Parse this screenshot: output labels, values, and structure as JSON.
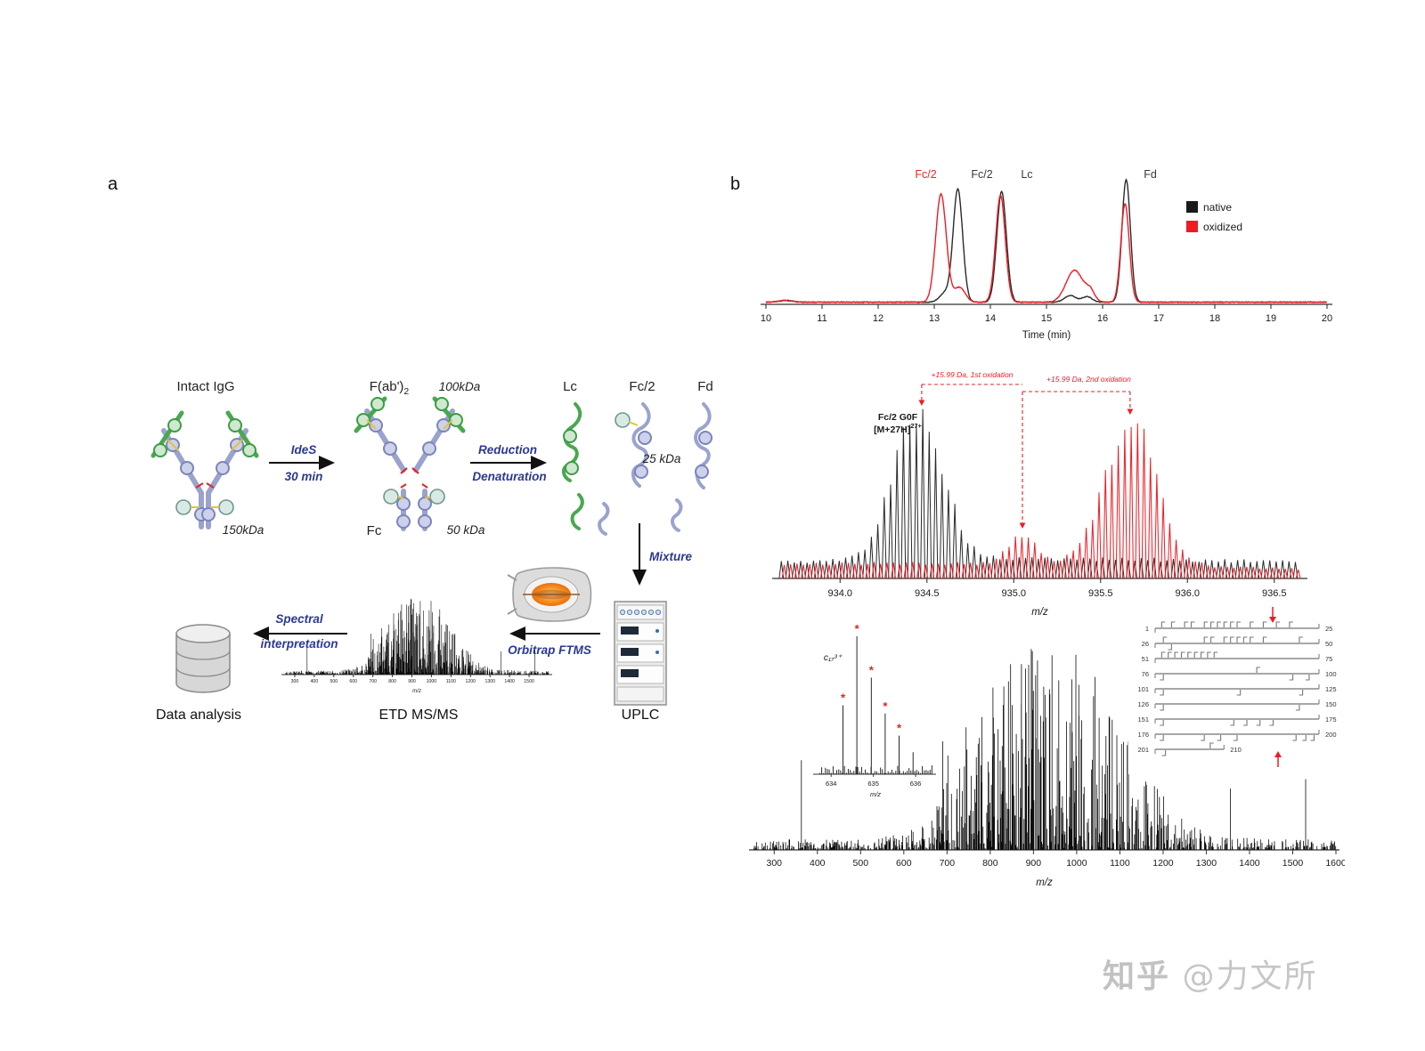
{
  "panel_a": {
    "label": "a",
    "accent_color": "#2b3990",
    "nodes": {
      "intact_igg_label": "Intact IgG",
      "igg_mass": "150kDa",
      "ides": "IdeS",
      "ides_time": "30 min",
      "fab2_label": "F(ab')",
      "fab2_sub": "2",
      "fab2_mass": "100kDa",
      "fc_label": "Fc",
      "fc_mass": "50 kDa",
      "reduction": "Reduction",
      "denaturation": "Denaturation",
      "lc_label": "Lc",
      "fc2_label": "Fc/2",
      "fd_label": "Fd",
      "fc2_mass": "25 kDa",
      "mixture_label": "Mixture",
      "uplc_label": "UPLC",
      "orbitrap_label": "Orbitrap FTMS",
      "etd_label": "ETD MS/MS",
      "spectral_line1": "Spectral",
      "spectral_line2": "interpretation",
      "data_analysis_label": "Data analysis"
    }
  },
  "panel_b": {
    "label": "b"
  },
  "chart_data": [
    {
      "type": "line",
      "id": "chromatogram",
      "xlabel": "Time (min)",
      "xlim": [
        10,
        20
      ],
      "xticks": [
        10,
        11,
        12,
        13,
        14,
        15,
        16,
        17,
        18,
        19,
        20
      ],
      "ylim": [
        0,
        1.1
      ],
      "grid": false,
      "legend_position": "upper right",
      "peak_labels": [
        {
          "text": "Fc/2",
          "color": "#e8262a",
          "time": 12.85
        },
        {
          "text": "Fc/2",
          "color": "#3a3a3a",
          "time": 13.85
        },
        {
          "text": "Lc",
          "color": "#3a3a3a",
          "time": 14.65
        },
        {
          "text": "Fd",
          "color": "#3a3a3a",
          "time": 16.85
        }
      ],
      "legend": [
        {
          "label": "native",
          "color": "#1a1a1a"
        },
        {
          "label": "oxidized",
          "color": "#ed1c24"
        }
      ],
      "series": [
        {
          "name": "native",
          "color": "#2a2a2a",
          "peaks": [
            {
              "center": 10.35,
              "height": 0.015,
              "width": 0.12
            },
            {
              "center": 13.18,
              "height": 0.07,
              "width": 0.09
            },
            {
              "center": 13.42,
              "height": 0.92,
              "width": 0.085
            },
            {
              "center": 14.2,
              "height": 0.9,
              "width": 0.085
            },
            {
              "center": 15.42,
              "height": 0.055,
              "width": 0.1
            },
            {
              "center": 15.72,
              "height": 0.045,
              "width": 0.09
            },
            {
              "center": 16.42,
              "height": 1.0,
              "width": 0.075
            }
          ]
        },
        {
          "name": "oxidized",
          "color": "#ed1c24",
          "peaks": [
            {
              "center": 10.35,
              "height": 0.012,
              "width": 0.12
            },
            {
              "center": 13.12,
              "height": 0.88,
              "width": 0.095
            },
            {
              "center": 13.45,
              "height": 0.12,
              "width": 0.1
            },
            {
              "center": 14.18,
              "height": 0.87,
              "width": 0.085
            },
            {
              "center": 15.5,
              "height": 0.26,
              "width": 0.15
            },
            {
              "center": 15.78,
              "height": 0.08,
              "width": 0.08
            },
            {
              "center": 16.4,
              "height": 0.8,
              "width": 0.075
            }
          ]
        }
      ]
    },
    {
      "type": "line",
      "id": "isotope_envelope_spectrum",
      "xlabel": "m/z",
      "xlim": [
        933.65,
        936.65
      ],
      "xticks": [
        934.0,
        934.5,
        935.0,
        935.5,
        936.0,
        936.5
      ],
      "charge_spacing": 0.037,
      "species_label_line1": "Fc/2 G0F",
      "species_label_line2": "[M+27H]",
      "species_label_charge": "27+",
      "annotations": [
        {
          "text": "+15.99 Da, 1st oxidation",
          "from_mz": 934.47,
          "to_mz": 935.05
        },
        {
          "text": "+15.99 Da, 2nd oxidation",
          "from_mz": 935.05,
          "to_mz": 935.67
        }
      ],
      "envelopes": [
        {
          "series": "native",
          "color": "#2a2a2a",
          "center": 934.45,
          "sigma": 0.14,
          "height": 1.0
        },
        {
          "series": "oxidized",
          "color": "#ed1c24",
          "center": 935.67,
          "sigma": 0.15,
          "height": 0.95
        },
        {
          "series": "oxidized-minor",
          "color": "#ed1c24",
          "center": 935.05,
          "sigma": 0.08,
          "height": 0.2
        },
        {
          "series": "native-baseline",
          "color": "#2a2a2a",
          "center": 935.1,
          "sigma": 2.5,
          "height": 0.13
        },
        {
          "series": "oxidized-baseline",
          "color": "#ed1c24",
          "center": 934.3,
          "sigma": 2.5,
          "height": 0.1
        }
      ]
    },
    {
      "type": "stick-spectrum",
      "id": "etd_msms_spectrum",
      "xlabel": "m/z",
      "xlim": [
        250,
        1600
      ],
      "xticks": [
        300,
        400,
        500,
        600,
        700,
        800,
        900,
        1000,
        1100,
        1200,
        1300,
        1400,
        1500,
        1600
      ],
      "envelope": {
        "base": 0.045,
        "components": [
          {
            "center": 960,
            "sigma": 140,
            "amp": 0.82
          },
          {
            "center": 790,
            "sigma": 70,
            "amp": 0.22
          }
        ]
      },
      "named_peaks": [
        {
          "mz": 363,
          "height": 0.38
        },
        {
          "mz": 690,
          "height": 0.46
        },
        {
          "mz": 702,
          "height": 0.4
        },
        {
          "mz": 744,
          "height": 0.52
        },
        {
          "mz": 772,
          "height": 0.45
        },
        {
          "mz": 872,
          "height": 0.62
        },
        {
          "mz": 905,
          "height": 0.74
        },
        {
          "mz": 938,
          "height": 0.66
        },
        {
          "mz": 1005,
          "height": 0.7
        },
        {
          "mz": 1052,
          "height": 0.56
        },
        {
          "mz": 1120,
          "height": 0.46
        },
        {
          "mz": 1180,
          "height": 0.27
        },
        {
          "mz": 1356,
          "height": 0.26
        },
        {
          "mz": 1530,
          "height": 0.3
        }
      ],
      "inset_zoom": {
        "xlabel": "m/z",
        "xlim": [
          633.7,
          636.4
        ],
        "xticks": [
          634,
          635,
          636
        ],
        "ion_label": "c₁₇³⁺",
        "peaks": [
          {
            "mz": 634.28,
            "height": 0.5,
            "asterisk": true
          },
          {
            "mz": 634.61,
            "height": 1.0,
            "asterisk": true
          },
          {
            "mz": 634.95,
            "height": 0.7,
            "asterisk": true
          },
          {
            "mz": 635.28,
            "height": 0.44,
            "asterisk": true
          },
          {
            "mz": 635.61,
            "height": 0.28,
            "asterisk": true
          },
          {
            "mz": 635.94,
            "height": 0.16,
            "asterisk": false
          }
        ]
      },
      "coverage_map": {
        "rows": [
          {
            "start": "1",
            "end": "25",
            "len": 1,
            "marks": [
              [
                0.04,
                "u"
              ],
              [
                0.1,
                "u"
              ],
              [
                0.18,
                "u"
              ],
              [
                0.22,
                "u"
              ],
              [
                0.3,
                "u"
              ],
              [
                0.34,
                "u"
              ],
              [
                0.38,
                "u"
              ],
              [
                0.42,
                "u"
              ],
              [
                0.46,
                "u"
              ],
              [
                0.5,
                "u"
              ],
              [
                0.58,
                "u"
              ],
              [
                0.66,
                "u"
              ],
              [
                0.74,
                "u"
              ],
              [
                0.82,
                "u"
              ]
            ]
          },
          {
            "start": "26",
            "end": "50",
            "len": 1,
            "marks": [
              [
                0.05,
                "u"
              ],
              [
                0.1,
                "d"
              ],
              [
                0.3,
                "u"
              ],
              [
                0.34,
                "u"
              ],
              [
                0.42,
                "u"
              ],
              [
                0.46,
                "u"
              ],
              [
                0.5,
                "u"
              ],
              [
                0.54,
                "u"
              ],
              [
                0.58,
                "u"
              ],
              [
                0.66,
                "u"
              ],
              [
                0.88,
                "u"
              ]
            ]
          },
          {
            "start": "51",
            "end": "75",
            "len": 1,
            "marks": [
              [
                0.04,
                "u"
              ],
              [
                0.08,
                "u"
              ],
              [
                0.12,
                "u"
              ],
              [
                0.16,
                "u"
              ],
              [
                0.2,
                "u"
              ],
              [
                0.24,
                "u"
              ],
              [
                0.28,
                "u"
              ],
              [
                0.32,
                "u"
              ],
              [
                0.36,
                "u"
              ]
            ]
          },
          {
            "start": "76",
            "end": "100",
            "len": 1,
            "marks": [
              [
                0.05,
                "d"
              ],
              [
                0.62,
                "u"
              ],
              [
                0.84,
                "d"
              ],
              [
                0.94,
                "d"
              ]
            ]
          },
          {
            "start": "101",
            "end": "125",
            "len": 1,
            "marks": [
              [
                0.05,
                "d"
              ],
              [
                0.52,
                "d"
              ],
              [
                0.9,
                "d"
              ]
            ]
          },
          {
            "start": "126",
            "end": "150",
            "len": 1,
            "marks": [
              [
                0.05,
                "d"
              ],
              [
                0.88,
                "d"
              ]
            ]
          },
          {
            "start": "151",
            "end": "175",
            "len": 1,
            "marks": [
              [
                0.05,
                "d"
              ],
              [
                0.48,
                "d"
              ],
              [
                0.56,
                "d"
              ],
              [
                0.64,
                "d"
              ],
              [
                0.72,
                "d"
              ]
            ]
          },
          {
            "start": "176",
            "end": "200",
            "len": 1,
            "marks": [
              [
                0.05,
                "d"
              ],
              [
                0.3,
                "d"
              ],
              [
                0.4,
                "d"
              ],
              [
                0.5,
                "d"
              ],
              [
                0.86,
                "d"
              ],
              [
                0.92,
                "d"
              ],
              [
                0.97,
                "d"
              ]
            ]
          },
          {
            "start": "201",
            "end": "210",
            "len": 0.42,
            "marks": [
              [
                0.15,
                "d"
              ],
              [
                0.8,
                "u"
              ]
            ]
          }
        ]
      }
    }
  ],
  "watermark": {
    "brand": "知乎",
    "handle": "@力文所"
  }
}
